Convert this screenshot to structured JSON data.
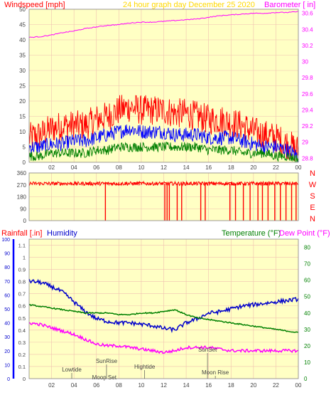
{
  "header": {
    "left_label": "Windspeed [mph]",
    "center_label": "24 hour graph day   December 25 2020",
    "right_label": "Barometer [ in]"
  },
  "lower_header": {
    "rainfall_label": "Rainfall [.in]",
    "humidity_label": "Humidity",
    "temperature_label": "Temperature (°F)",
    "dewpoint_label": "Dew Point (°F)"
  },
  "compass": [
    "N",
    "W",
    "S",
    "E",
    "N"
  ],
  "colors": {
    "plot_bg": "#ffffc4",
    "wind_gust": "#ff0000",
    "wind_avg": "#0000ff",
    "wind_min": "#008000",
    "barometer": "#ff00ff",
    "humidity": "#0000cc",
    "temperature": "#008000",
    "dewpoint": "#ff00ff",
    "grid": "#ff0000",
    "header_text": "#ffd800",
    "axis_text": "#444444"
  },
  "chart_data": [
    {
      "type": "line",
      "name": "wind-and-barometer",
      "x_ticks": [
        "02",
        "04",
        "06",
        "08",
        "10",
        "12",
        "14",
        "16",
        "18",
        "20",
        "22",
        "00"
      ],
      "left_axis": {
        "ticks": [
          50,
          45,
          40,
          35,
          30,
          25,
          20,
          15,
          10,
          5,
          0
        ],
        "ylim": [
          0,
          50
        ]
      },
      "right_axis": {
        "ticks": [
          "30.6",
          "30.4",
          "30.2",
          "30",
          "29.8",
          "29.6",
          "29.4",
          "29.2",
          "29",
          "28.8"
        ],
        "ylim": [
          28.75,
          30.65
        ]
      },
      "hours": [
        0,
        1,
        2,
        3,
        4,
        5,
        6,
        7,
        8,
        9,
        10,
        11,
        12,
        13,
        14,
        15,
        16,
        17,
        18,
        19,
        20,
        21,
        22,
        23,
        24
      ],
      "gust": [
        8,
        9,
        11,
        12,
        12,
        12,
        14,
        15,
        17,
        18,
        17,
        17,
        17,
        16,
        16,
        15,
        14,
        14,
        13,
        12,
        10,
        9,
        8,
        6,
        4
      ],
      "avg": [
        5,
        5,
        6,
        6,
        7,
        7,
        8,
        9,
        10,
        11,
        10,
        10,
        10,
        9,
        9,
        9,
        8,
        8,
        8,
        7,
        6,
        5,
        5,
        4,
        2
      ],
      "low": [
        2,
        2,
        3,
        3,
        3,
        3,
        4,
        4,
        5,
        5,
        5,
        5,
        5,
        5,
        5,
        5,
        4,
        4,
        4,
        3,
        3,
        3,
        2,
        2,
        1
      ],
      "barometer": [
        30.3,
        30.31,
        30.33,
        30.36,
        30.38,
        30.41,
        30.43,
        30.45,
        30.46,
        30.48,
        30.49,
        30.49,
        30.5,
        30.51,
        30.52,
        30.53,
        30.55,
        30.57,
        30.58,
        30.59,
        30.6,
        30.6,
        30.61,
        30.61,
        30.62
      ]
    },
    {
      "type": "scatter",
      "name": "wind-direction",
      "x_ticks": [
        "02",
        "04",
        "06",
        "08",
        "10",
        "12",
        "14",
        "16",
        "18",
        "20",
        "22",
        "00"
      ],
      "y_ticks": [
        360,
        270,
        180,
        90,
        0
      ],
      "ylim": [
        0,
        360
      ],
      "baseline_deg": 280,
      "drop_hours": [
        6.8,
        12.1,
        12.3,
        12.5,
        13.2,
        13.6,
        15.3,
        15.7,
        17.9,
        18.4,
        19.1,
        19.7,
        20.4,
        20.8,
        21.3,
        21.9,
        22.4,
        22.9,
        23.4,
        23.8
      ]
    },
    {
      "type": "line",
      "name": "rain-humidity-temperature",
      "x_ticks": [
        "02",
        "04",
        "06",
        "08",
        "10",
        "12",
        "14",
        "16",
        "18",
        "20",
        "22",
        "00"
      ],
      "left_axis": {
        "ticks": [
          "1.1",
          "1",
          "0.9",
          "0.8",
          "0.7",
          "0.6",
          "0.5",
          "0.4",
          "0.3",
          "0.2",
          "0.1",
          "0"
        ],
        "ylim": [
          0,
          1.15
        ]
      },
      "humidity_axis": {
        "ticks": [
          100,
          90,
          80,
          70,
          60,
          50,
          40,
          30,
          20,
          10,
          0
        ],
        "ylim": [
          0,
          100
        ]
      },
      "right_axis": {
        "ticks": [
          80,
          70,
          60,
          50,
          40,
          30,
          20,
          10,
          0
        ],
        "ylim": [
          0,
          85
        ]
      },
      "hours": [
        0,
        1,
        2,
        3,
        4,
        5,
        6,
        7,
        8,
        9,
        10,
        11,
        12,
        13,
        14,
        15,
        16,
        17,
        18,
        19,
        20,
        21,
        22,
        23,
        24
      ],
      "humidity": [
        70,
        69,
        66,
        62,
        55,
        48,
        43,
        41,
        40,
        40,
        39,
        38,
        36,
        35,
        40,
        43,
        47,
        48,
        50,
        52,
        53,
        54,
        55,
        56,
        57
      ],
      "temperature": [
        45,
        44,
        43,
        42,
        41,
        40,
        40,
        40,
        39,
        39,
        40,
        40,
        41,
        42,
        39,
        37,
        36,
        35,
        34,
        33,
        32,
        31,
        30,
        29,
        28
      ],
      "dewpoint": [
        34,
        33,
        31,
        29,
        27,
        24,
        21,
        20,
        20,
        19,
        18,
        17,
        16,
        17,
        19,
        19,
        19,
        18,
        17,
        17,
        17,
        17,
        17,
        17,
        17
      ],
      "tide_labels": [
        {
          "hour": 3.8,
          "text": "Lowtide"
        },
        {
          "hour": 6.9,
          "text": "SunRise"
        },
        {
          "hour": 6.7,
          "text": "Moon Set"
        },
        {
          "hour": 10.3,
          "text": "Hightide"
        },
        {
          "hour": 15.9,
          "text": "SunSet"
        },
        {
          "hour": 16.6,
          "text": "Moon Rise"
        }
      ]
    }
  ]
}
